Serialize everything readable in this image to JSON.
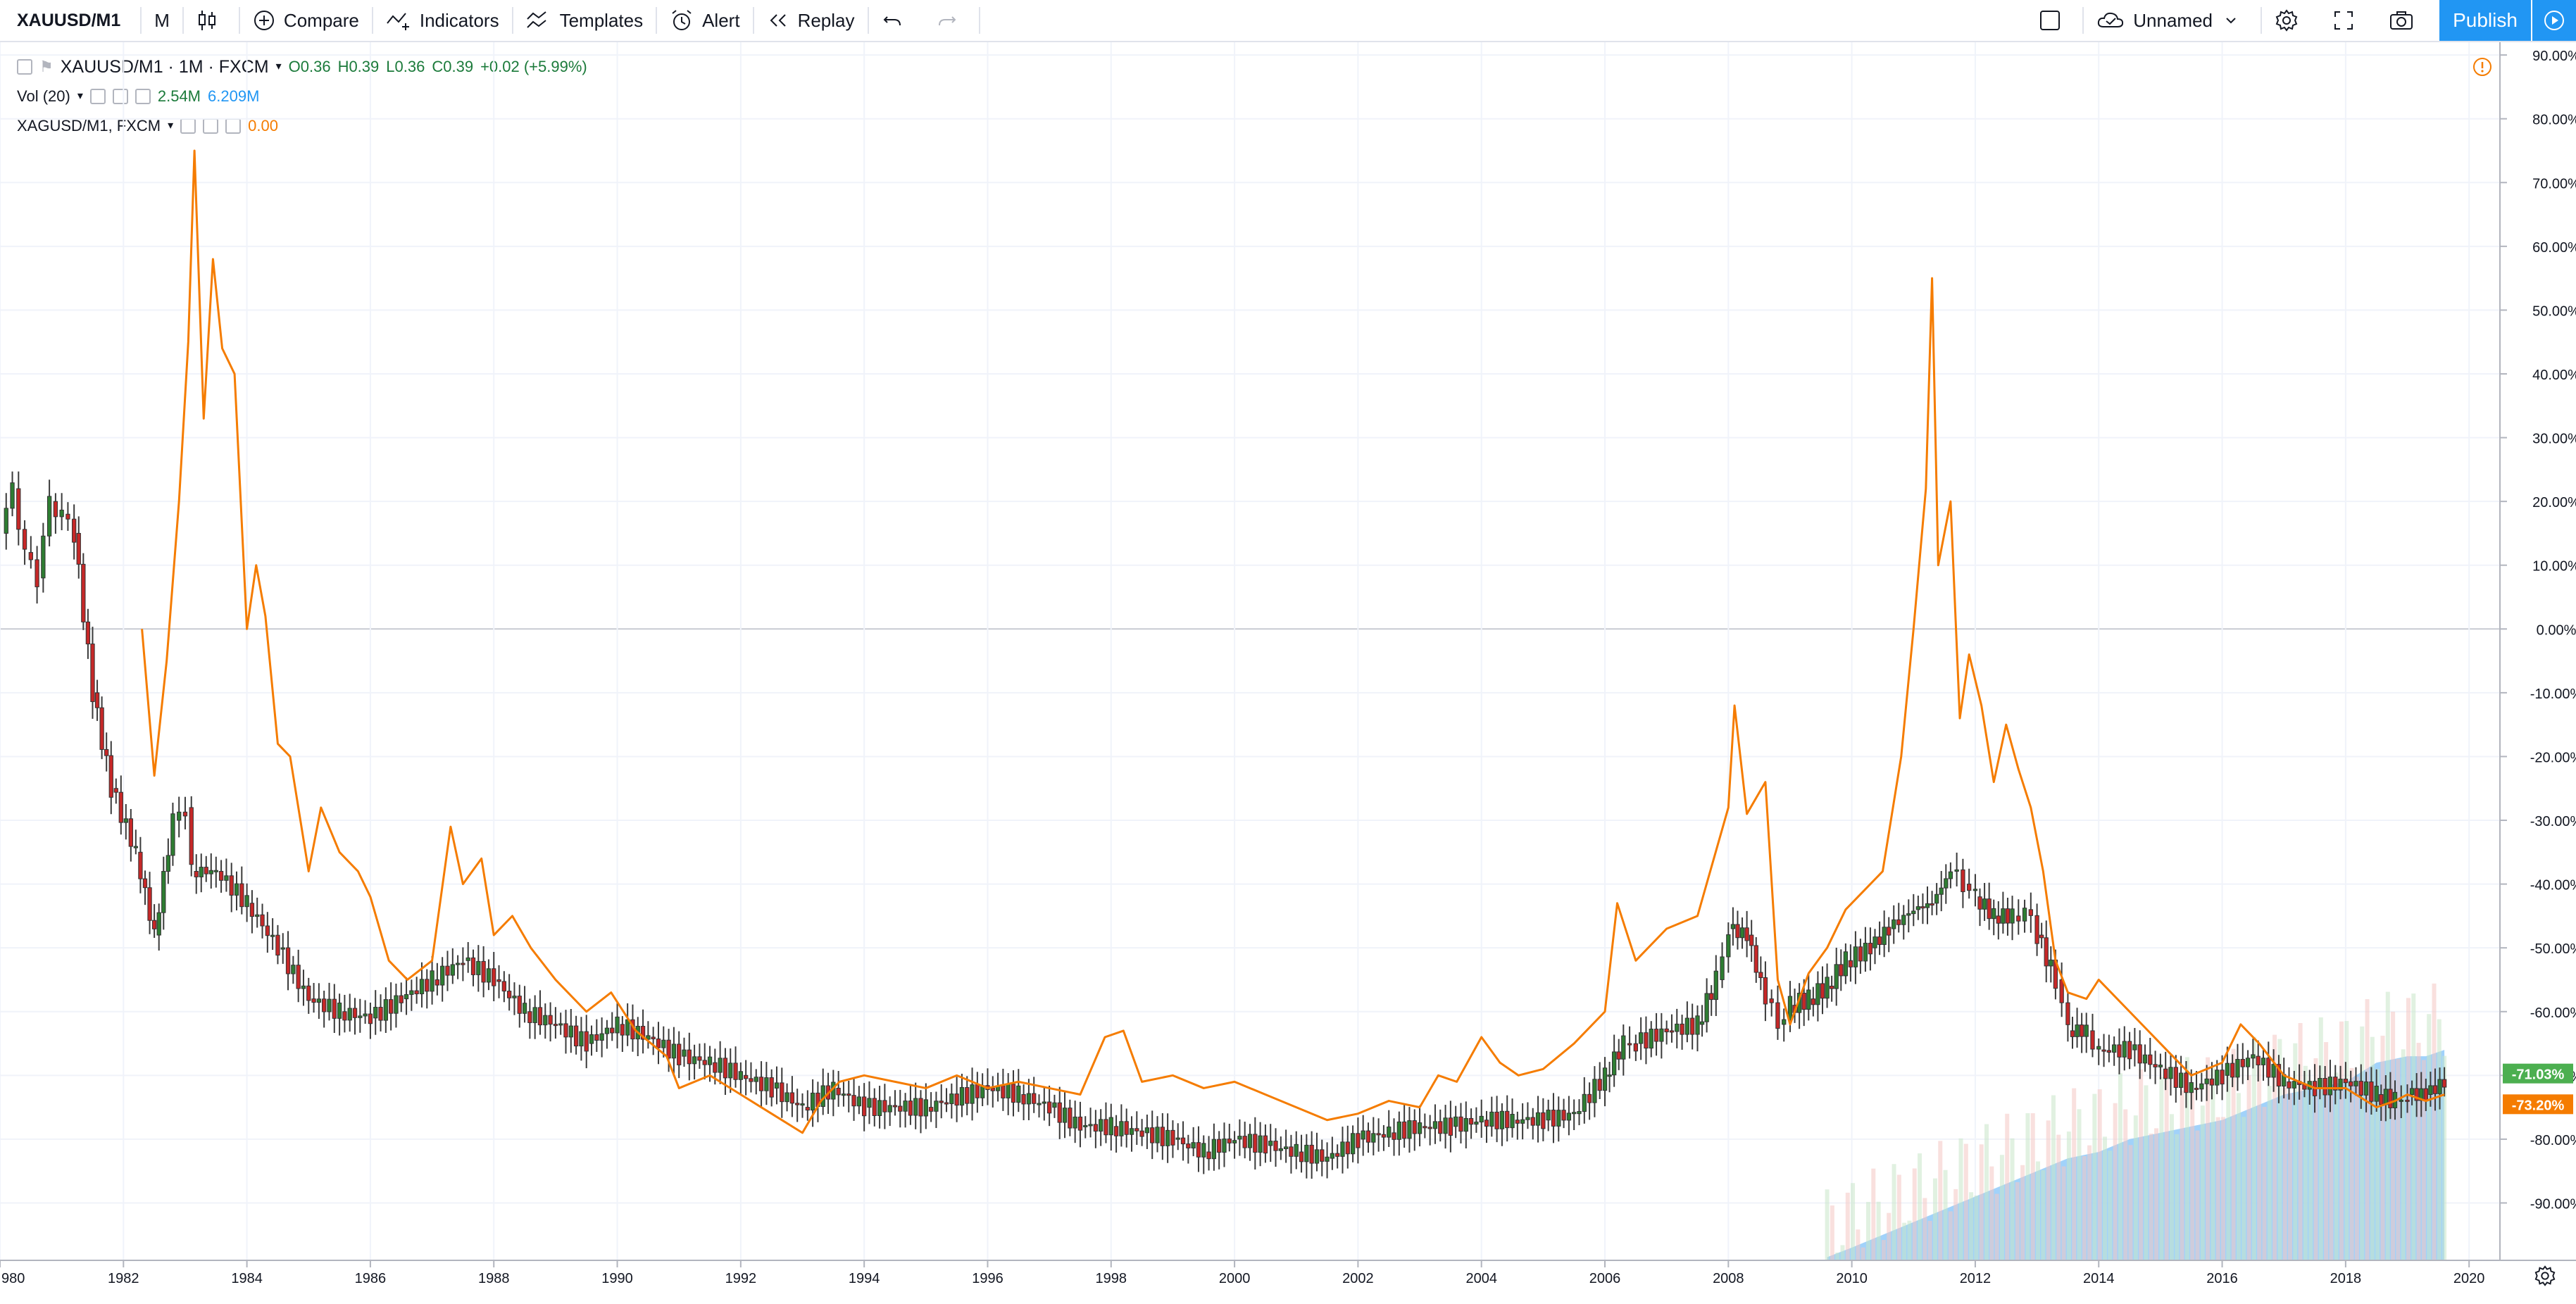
{
  "toolbar": {
    "symbol": "XAUUSD/M1",
    "interval": "M",
    "compare": "Compare",
    "indicators": "Indicators",
    "templates": "Templates",
    "alert": "Alert",
    "replay": "Replay",
    "layout_name": "Unnamed",
    "publish": "Publish"
  },
  "legend": {
    "main_symbol": "XAUUSD/M1 · 1M · FXCM",
    "open": "O0.36",
    "high": "H0.39",
    "low": "L0.36",
    "close": "C0.39",
    "change": "+0.02 (+5.99%)",
    "vol_label": "Vol (20)",
    "vol_value1": "2.54M",
    "vol_value2": "6.209M",
    "compare_symbol": "XAGUSD/M1, FXCM",
    "compare_value": "0.00"
  },
  "colors": {
    "up": "#26a69a",
    "up_body": "#2e7d32",
    "down": "#c62828",
    "compare_line": "#f57c00",
    "volume_area": "#90caf9",
    "accent": "#2196f3",
    "badge_green": "#4caf50",
    "badge_orange": "#f57c00"
  },
  "chart_data": {
    "type": "line",
    "y_unit": "%",
    "x_axis_labels": [
      "980",
      "1982",
      "1984",
      "1986",
      "1988",
      "1990",
      "1992",
      "1994",
      "1996",
      "1998",
      "2000",
      "2002",
      "2004",
      "2006",
      "2008",
      "2010",
      "2012",
      "2014",
      "2016",
      "2018",
      "2020"
    ],
    "x_range": [
      1980,
      2020.5
    ],
    "y_axis_labels": [
      "90.00%",
      "80.00%",
      "70.00%",
      "60.00%",
      "50.00%",
      "40.00%",
      "30.00%",
      "20.00%",
      "10.00%",
      "0.00%",
      "-10.00%",
      "-20.00%",
      "-30.00%",
      "-40.00%",
      "-50.00%",
      "-60.00%",
      "-70.00%",
      "-80.00%",
      "-90.00%"
    ],
    "y_range": [
      -99,
      92
    ],
    "grid": true,
    "last_value_badges": [
      {
        "label": "-71.03%",
        "value": -71.03,
        "color": "#4caf50"
      },
      {
        "label": "-73.20%",
        "value": -73.2,
        "color": "#f57c00"
      }
    ],
    "series": [
      {
        "name": "XAUUSD/M1",
        "style": "candlestick",
        "points": [
          [
            1980.0,
            15
          ],
          [
            1980.2,
            22
          ],
          [
            1980.4,
            12
          ],
          [
            1980.6,
            8
          ],
          [
            1980.8,
            20
          ],
          [
            1981.0,
            18
          ],
          [
            1981.2,
            15
          ],
          [
            1981.5,
            -10
          ],
          [
            1981.8,
            -25
          ],
          [
            1982.2,
            -35
          ],
          [
            1982.5,
            -48
          ],
          [
            1982.8,
            -30
          ],
          [
            1983.0,
            -28
          ],
          [
            1983.1,
            -38
          ],
          [
            1983.5,
            -38
          ],
          [
            1984.0,
            -43
          ],
          [
            1984.5,
            -50
          ],
          [
            1985.0,
            -58
          ],
          [
            1985.5,
            -60
          ],
          [
            1986.0,
            -61
          ],
          [
            1986.5,
            -58
          ],
          [
            1987.0,
            -55
          ],
          [
            1987.5,
            -52
          ],
          [
            1988.0,
            -55
          ],
          [
            1988.5,
            -60
          ],
          [
            1989.0,
            -62
          ],
          [
            1989.5,
            -65
          ],
          [
            1990.0,
            -62
          ],
          [
            1990.5,
            -64
          ],
          [
            1991.0,
            -67
          ],
          [
            1991.5,
            -68
          ],
          [
            1992.0,
            -70
          ],
          [
            1992.5,
            -72
          ],
          [
            1993.0,
            -75
          ],
          [
            1993.5,
            -72
          ],
          [
            1994.0,
            -75
          ],
          [
            1995.0,
            -75
          ],
          [
            1996.0,
            -72
          ],
          [
            1996.5,
            -73
          ],
          [
            1997.0,
            -75
          ],
          [
            1997.5,
            -78
          ],
          [
            1998.0,
            -78
          ],
          [
            1998.5,
            -79
          ],
          [
            1999.0,
            -80
          ],
          [
            1999.5,
            -82
          ],
          [
            2000.0,
            -80
          ],
          [
            2000.5,
            -81
          ],
          [
            2001.0,
            -82
          ],
          [
            2001.5,
            -83
          ],
          [
            2002.0,
            -80
          ],
          [
            2002.5,
            -79
          ],
          [
            2003.0,
            -78
          ],
          [
            2003.5,
            -78
          ],
          [
            2004.0,
            -77
          ],
          [
            2004.5,
            -77
          ],
          [
            2005.0,
            -77
          ],
          [
            2005.5,
            -76
          ],
          [
            2006.0,
            -70
          ],
          [
            2006.3,
            -65
          ],
          [
            2006.5,
            -65
          ],
          [
            2007.0,
            -63
          ],
          [
            2007.5,
            -62
          ],
          [
            2007.8,
            -55
          ],
          [
            2008.0,
            -47
          ],
          [
            2008.3,
            -48
          ],
          [
            2008.6,
            -58
          ],
          [
            2008.8,
            -62
          ],
          [
            2009.0,
            -59
          ],
          [
            2009.3,
            -58
          ],
          [
            2009.6,
            -56
          ],
          [
            2009.9,
            -52
          ],
          [
            2010.3,
            -50
          ],
          [
            2010.6,
            -47
          ],
          [
            2011.0,
            -44
          ],
          [
            2011.3,
            -43
          ],
          [
            2011.6,
            -38
          ],
          [
            2011.8,
            -40
          ],
          [
            2012.0,
            -42
          ],
          [
            2012.3,
            -45
          ],
          [
            2012.6,
            -45
          ],
          [
            2012.8,
            -44
          ],
          [
            2013.0,
            -48
          ],
          [
            2013.3,
            -55
          ],
          [
            2013.5,
            -63
          ],
          [
            2013.8,
            -63
          ],
          [
            2014.0,
            -66
          ],
          [
            2014.5,
            -66
          ],
          [
            2015.0,
            -69
          ],
          [
            2015.5,
            -72
          ],
          [
            2016.0,
            -70
          ],
          [
            2016.5,
            -67
          ],
          [
            2017.0,
            -71
          ],
          [
            2017.5,
            -72
          ],
          [
            2018.0,
            -71
          ],
          [
            2018.5,
            -73
          ],
          [
            2018.8,
            -74
          ],
          [
            2019.0,
            -73
          ],
          [
            2019.3,
            -73
          ],
          [
            2019.6,
            -71
          ]
        ]
      },
      {
        "name": "XAGUSD/M1, FXCM",
        "style": "line",
        "points": [
          [
            1982.3,
            0
          ],
          [
            1982.5,
            -23
          ],
          [
            1982.7,
            -5
          ],
          [
            1982.9,
            20
          ],
          [
            1983.05,
            45
          ],
          [
            1983.15,
            75
          ],
          [
            1983.3,
            33
          ],
          [
            1983.45,
            58
          ],
          [
            1983.6,
            44
          ],
          [
            1983.8,
            40
          ],
          [
            1984.0,
            0
          ],
          [
            1984.15,
            10
          ],
          [
            1984.3,
            2
          ],
          [
            1984.5,
            -18
          ],
          [
            1984.7,
            -20
          ],
          [
            1985.0,
            -38
          ],
          [
            1985.2,
            -28
          ],
          [
            1985.5,
            -35
          ],
          [
            1985.8,
            -38
          ],
          [
            1986.0,
            -42
          ],
          [
            1986.3,
            -52
          ],
          [
            1986.6,
            -55
          ],
          [
            1987.0,
            -52
          ],
          [
            1987.3,
            -31
          ],
          [
            1987.5,
            -40
          ],
          [
            1987.8,
            -36
          ],
          [
            1988.0,
            -48
          ],
          [
            1988.3,
            -45
          ],
          [
            1988.6,
            -50
          ],
          [
            1989.0,
            -55
          ],
          [
            1989.5,
            -60
          ],
          [
            1989.9,
            -57
          ],
          [
            1990.3,
            -63
          ],
          [
            1990.8,
            -67
          ],
          [
            1991.0,
            -72
          ],
          [
            1991.5,
            -70
          ],
          [
            1992.0,
            -73
          ],
          [
            1992.5,
            -76
          ],
          [
            1993.0,
            -79
          ],
          [
            1993.3,
            -74
          ],
          [
            1993.6,
            -71
          ],
          [
            1994.0,
            -70
          ],
          [
            1994.5,
            -71
          ],
          [
            1995.0,
            -72
          ],
          [
            1995.5,
            -70
          ],
          [
            1996.0,
            -72
          ],
          [
            1996.5,
            -71
          ],
          [
            1997.0,
            -72
          ],
          [
            1997.5,
            -73
          ],
          [
            1997.9,
            -64
          ],
          [
            1998.2,
            -63
          ],
          [
            1998.5,
            -71
          ],
          [
            1999.0,
            -70
          ],
          [
            1999.5,
            -72
          ],
          [
            2000.0,
            -71
          ],
          [
            2000.5,
            -73
          ],
          [
            2001.0,
            -75
          ],
          [
            2001.5,
            -77
          ],
          [
            2002.0,
            -76
          ],
          [
            2002.5,
            -74
          ],
          [
            2003.0,
            -75
          ],
          [
            2003.3,
            -70
          ],
          [
            2003.6,
            -71
          ],
          [
            2004.0,
            -64
          ],
          [
            2004.3,
            -68
          ],
          [
            2004.6,
            -70
          ],
          [
            2005.0,
            -69
          ],
          [
            2005.5,
            -65
          ],
          [
            2006.0,
            -60
          ],
          [
            2006.2,
            -43
          ],
          [
            2006.5,
            -52
          ],
          [
            2007.0,
            -47
          ],
          [
            2007.5,
            -45
          ],
          [
            2008.0,
            -28
          ],
          [
            2008.1,
            -12
          ],
          [
            2008.3,
            -29
          ],
          [
            2008.6,
            -24
          ],
          [
            2008.8,
            -55
          ],
          [
            2009.0,
            -62
          ],
          [
            2009.3,
            -54
          ],
          [
            2009.6,
            -50
          ],
          [
            2009.9,
            -44
          ],
          [
            2010.2,
            -41
          ],
          [
            2010.5,
            -38
          ],
          [
            2010.8,
            -20
          ],
          [
            2011.0,
            0
          ],
          [
            2011.2,
            22
          ],
          [
            2011.3,
            55
          ],
          [
            2011.4,
            10
          ],
          [
            2011.6,
            20
          ],
          [
            2011.75,
            -14
          ],
          [
            2011.9,
            -4
          ],
          [
            2012.1,
            -12
          ],
          [
            2012.3,
            -24
          ],
          [
            2012.5,
            -15
          ],
          [
            2012.7,
            -22
          ],
          [
            2012.9,
            -28
          ],
          [
            2013.1,
            -38
          ],
          [
            2013.3,
            -52
          ],
          [
            2013.5,
            -57
          ],
          [
            2013.8,
            -58
          ],
          [
            2014.0,
            -55
          ],
          [
            2014.5,
            -60
          ],
          [
            2015.0,
            -65
          ],
          [
            2015.5,
            -70
          ],
          [
            2016.0,
            -68
          ],
          [
            2016.3,
            -62
          ],
          [
            2016.6,
            -65
          ],
          [
            2017.0,
            -70
          ],
          [
            2017.5,
            -72
          ],
          [
            2018.0,
            -72
          ],
          [
            2018.5,
            -75
          ],
          [
            2018.8,
            -74
          ],
          [
            2019.0,
            -73
          ],
          [
            2019.3,
            -74
          ],
          [
            2019.6,
            -73
          ]
        ]
      },
      {
        "name": "Vol (20)",
        "style": "area",
        "points": [
          [
            2009.6,
            -98.5
          ],
          [
            2010.0,
            -97
          ],
          [
            2010.5,
            -95
          ],
          [
            2011.0,
            -93
          ],
          [
            2011.5,
            -91
          ],
          [
            2012.0,
            -89
          ],
          [
            2012.5,
            -87
          ],
          [
            2013.0,
            -85
          ],
          [
            2013.5,
            -83
          ],
          [
            2014.0,
            -82
          ],
          [
            2014.5,
            -80
          ],
          [
            2015.0,
            -79
          ],
          [
            2015.5,
            -78
          ],
          [
            2016.0,
            -77
          ],
          [
            2016.5,
            -75
          ],
          [
            2017.0,
            -73
          ],
          [
            2017.5,
            -72
          ],
          [
            2018.0,
            -71
          ],
          [
            2018.5,
            -68
          ],
          [
            2019.0,
            -67
          ],
          [
            2019.3,
            -67
          ],
          [
            2019.6,
            -66
          ]
        ]
      }
    ]
  }
}
